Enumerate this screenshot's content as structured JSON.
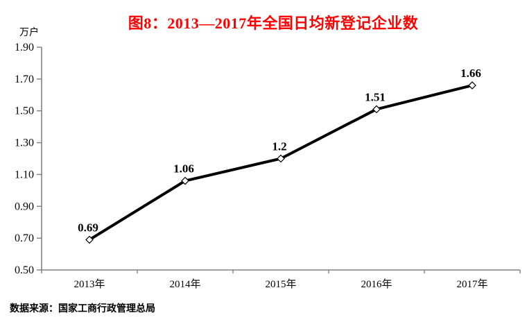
{
  "header": {
    "title": "图8：2013—2017年全国日均新登记企业数",
    "title_color": "#ff0000"
  },
  "axis_unit_label": "万户",
  "source_note": "数据来源：国家工商行政管理总局",
  "chart_data": {
    "type": "line",
    "title": "图8：2013—2017年全国日均新登记企业数",
    "categories": [
      "2013年",
      "2014年",
      "2015年",
      "2016年",
      "2017年"
    ],
    "values": [
      0.69,
      1.06,
      1.2,
      1.51,
      1.66
    ],
    "value_labels": [
      "0.69",
      "1.06",
      "1.2",
      "1.51",
      "1.66"
    ],
    "ylabel": "万户",
    "xlabel": "",
    "ylim": [
      0.5,
      1.9
    ],
    "yticks": [
      0.5,
      0.7,
      0.9,
      1.1,
      1.3,
      1.5,
      1.7,
      1.9
    ],
    "ytick_labels": [
      "0.50",
      "0.70",
      "0.90",
      "1.10",
      "1.30",
      "1.50",
      "1.70",
      "1.90"
    ],
    "grid": false,
    "legend": "none",
    "line_color": "#000000",
    "marker": "diamond",
    "marker_fill": "#ffffff",
    "marker_stroke": "#000000",
    "axis_color": "#808080",
    "text_color": "#000000"
  }
}
